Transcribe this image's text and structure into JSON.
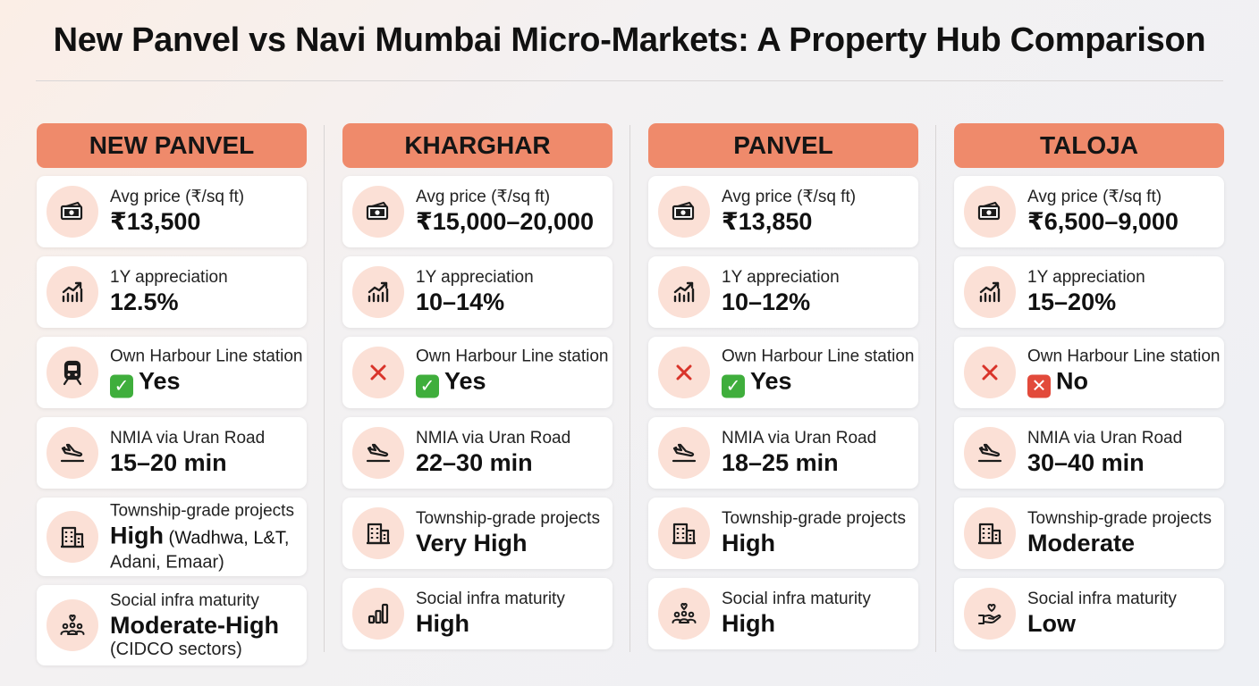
{
  "title": "New Panvel vs Navi Mumbai Micro-Markets: A Property Hub Comparison",
  "colors": {
    "header_bg": "#ef8a6b",
    "icon_bg": "#fbe0d6",
    "icon_stroke": "#1c1c1c",
    "cross": "#d9342a",
    "yes_badge": "#3fae3c",
    "no_badge": "#e24a3b"
  },
  "columns": [
    {
      "name": "NEW PANVEL",
      "rows": [
        {
          "icon": "cash-icon",
          "label": "Avg price (₹/sq ft)",
          "value": "₹13,500"
        },
        {
          "icon": "chart-up-icon",
          "label": "1Y appreciation",
          "value": "12.5%"
        },
        {
          "icon": "train-icon",
          "label": "Own Harbour Line station",
          "badge": "✓",
          "value": "Yes"
        },
        {
          "icon": "plane-icon",
          "label": "NMIA via Uran Road",
          "value": "15–20 min"
        },
        {
          "icon": "building-icon",
          "label": "Township-grade projects",
          "value": "High",
          "value_suffix": " (Wadhwa, L&T,",
          "sub": "Adani, Emaar)"
        },
        {
          "icon": "community-icon",
          "label": "Social infra maturity",
          "value": "Moderate-High",
          "sub": "(CIDCO sectors)"
        }
      ]
    },
    {
      "name": "KHARGHAR",
      "rows": [
        {
          "icon": "cash-icon",
          "label": "Avg price (₹/sq ft)",
          "value": "₹15,000–20,000"
        },
        {
          "icon": "chart-up-icon",
          "label": "1Y appreciation",
          "value": "10–14%"
        },
        {
          "icon": "cross-icon",
          "label": "Own Harbour Line station",
          "badge": "✓",
          "value": "Yes"
        },
        {
          "icon": "plane-icon",
          "label": "NMIA via Uran Road",
          "value": "22–30 min"
        },
        {
          "icon": "building-icon",
          "label": "Township-grade projects",
          "value": "Very High"
        },
        {
          "icon": "bar-chart-icon",
          "label": "Social infra maturity",
          "value": "High"
        }
      ]
    },
    {
      "name": "PANVEL",
      "rows": [
        {
          "icon": "cash-icon",
          "label": "Avg price (₹/sq ft)",
          "value": "₹13,850"
        },
        {
          "icon": "chart-up-icon",
          "label": "1Y appreciation",
          "value": "10–12%"
        },
        {
          "icon": "cross-icon",
          "label": "Own Harbour Line station",
          "badge": "✓",
          "value": "Yes"
        },
        {
          "icon": "plane-icon",
          "label": "NMIA via Uran Road",
          "value": "18–25 min"
        },
        {
          "icon": "building-icon",
          "label": "Township-grade projects",
          "value": "High"
        },
        {
          "icon": "community-icon",
          "label": "Social infra maturity",
          "value": "High"
        }
      ]
    },
    {
      "name": "TALOJA",
      "rows": [
        {
          "icon": "cash-icon",
          "label": "Avg price (₹/sq ft)",
          "value": "₹6,500–9,000"
        },
        {
          "icon": "chart-up-icon",
          "label": "1Y appreciation",
          "value": "15–20%"
        },
        {
          "icon": "cross-icon",
          "label": "Own Harbour Line station",
          "badge": "✕",
          "value": "No"
        },
        {
          "icon": "plane-icon",
          "label": "NMIA via Uran Road",
          "value": "30–40 min"
        },
        {
          "icon": "building-icon",
          "label": "Township-grade projects",
          "value": "Moderate"
        },
        {
          "icon": "heart-hand-icon",
          "label": "Social infra maturity",
          "value": "Low"
        }
      ]
    }
  ]
}
